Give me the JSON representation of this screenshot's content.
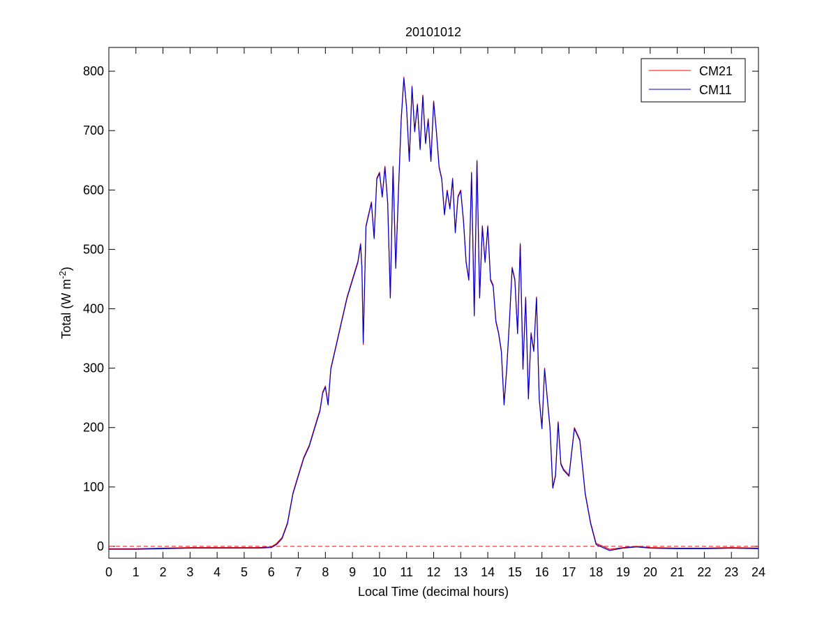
{
  "chart_data": {
    "type": "line",
    "title": "20101012",
    "xlabel": "Local Time (decimal hours)",
    "ylabel_prefix": "Total (W m",
    "ylabel_exponent": "-2",
    "ylabel_suffix": ")",
    "xlim": [
      0,
      24
    ],
    "ylim": [
      -20,
      840
    ],
    "xticks": [
      0,
      1,
      2,
      3,
      4,
      5,
      6,
      7,
      8,
      9,
      10,
      11,
      12,
      13,
      14,
      15,
      16,
      17,
      18,
      19,
      20,
      21,
      22,
      23,
      24
    ],
    "xtick_labels": [
      "0",
      "1",
      "2",
      "3",
      "4",
      "5",
      "6",
      "7",
      "8",
      "9",
      "10",
      "11",
      "12",
      "13",
      "14",
      "15",
      "16",
      "17",
      "18",
      "19",
      "20",
      "21",
      "22",
      "23",
      "24"
    ],
    "yticks": [
      0,
      100,
      200,
      300,
      400,
      500,
      600,
      700,
      800
    ],
    "ytick_labels": [
      "0",
      "100",
      "200",
      "300",
      "400",
      "500",
      "600",
      "700",
      "800"
    ],
    "grid": false,
    "legend_position": "top-right",
    "reference_line": {
      "y": 0,
      "color": "#ff0000",
      "style": "dashed"
    },
    "series": [
      {
        "name": "CM21",
        "color": "#ff0000",
        "x": [
          0,
          1,
          2,
          3,
          4,
          5,
          5.5,
          6,
          6.2,
          6.4,
          6.6,
          6.8,
          7,
          7.2,
          7.4,
          7.6,
          7.8,
          7.9,
          8,
          8.1,
          8.2,
          8.4,
          8.6,
          8.8,
          9,
          9.2,
          9.3,
          9.35,
          9.4,
          9.5,
          9.6,
          9.7,
          9.8,
          9.9,
          10,
          10.1,
          10.2,
          10.3,
          10.4,
          10.5,
          10.6,
          10.7,
          10.8,
          10.9,
          11,
          11.1,
          11.2,
          11.3,
          11.4,
          11.5,
          11.6,
          11.7,
          11.8,
          11.9,
          12,
          12.1,
          12.2,
          12.3,
          12.4,
          12.5,
          12.6,
          12.7,
          12.8,
          12.9,
          13,
          13.1,
          13.2,
          13.3,
          13.4,
          13.5,
          13.6,
          13.7,
          13.8,
          13.9,
          14,
          14.1,
          14.2,
          14.3,
          14.4,
          14.5,
          14.6,
          14.7,
          14.8,
          14.9,
          15,
          15.1,
          15.2,
          15.3,
          15.4,
          15.5,
          15.6,
          15.7,
          15.8,
          15.9,
          16,
          16.1,
          16.2,
          16.3,
          16.4,
          16.5,
          16.6,
          16.7,
          16.8,
          17,
          17.2,
          17.4,
          17.6,
          17.8,
          18,
          18.5,
          19,
          19.5,
          20,
          21,
          22,
          23,
          24
        ],
        "y": [
          -4,
          -4,
          -3,
          -2,
          -2,
          -2,
          -2,
          -1,
          5,
          15,
          40,
          90,
          120,
          150,
          170,
          200,
          230,
          260,
          270,
          240,
          300,
          340,
          380,
          420,
          450,
          480,
          510,
          470,
          340,
          540,
          560,
          580,
          520,
          620,
          630,
          590,
          640,
          580,
          420,
          640,
          470,
          600,
          720,
          790,
          740,
          650,
          775,
          700,
          745,
          670,
          760,
          680,
          720,
          650,
          750,
          700,
          640,
          620,
          560,
          600,
          570,
          620,
          530,
          590,
          600,
          550,
          480,
          450,
          630,
          390,
          650,
          420,
          540,
          480,
          540,
          450,
          440,
          380,
          360,
          330,
          240,
          300,
          380,
          470,
          450,
          360,
          510,
          300,
          420,
          250,
          360,
          330,
          420,
          250,
          200,
          300,
          250,
          200,
          100,
          120,
          210,
          140,
          130,
          120,
          200,
          180,
          90,
          40,
          5,
          -5,
          -2,
          0,
          -2,
          -3,
          -3,
          -2,
          -3
        ]
      },
      {
        "name": "CM11",
        "color": "#0000cc",
        "x": [
          0,
          1,
          2,
          3,
          4,
          5,
          5.5,
          6,
          6.2,
          6.4,
          6.6,
          6.8,
          7,
          7.2,
          7.4,
          7.6,
          7.8,
          7.9,
          8,
          8.1,
          8.2,
          8.4,
          8.6,
          8.8,
          9,
          9.2,
          9.3,
          9.35,
          9.4,
          9.5,
          9.6,
          9.7,
          9.8,
          9.9,
          10,
          10.1,
          10.2,
          10.3,
          10.4,
          10.5,
          10.6,
          10.7,
          10.8,
          10.9,
          11,
          11.1,
          11.2,
          11.3,
          11.4,
          11.5,
          11.6,
          11.7,
          11.8,
          11.9,
          12,
          12.1,
          12.2,
          12.3,
          12.4,
          12.5,
          12.6,
          12.7,
          12.8,
          12.9,
          13,
          13.1,
          13.2,
          13.3,
          13.4,
          13.5,
          13.6,
          13.7,
          13.8,
          13.9,
          14,
          14.1,
          14.2,
          14.3,
          14.4,
          14.5,
          14.6,
          14.7,
          14.8,
          14.9,
          15,
          15.1,
          15.2,
          15.3,
          15.4,
          15.5,
          15.6,
          15.7,
          15.8,
          15.9,
          16,
          16.1,
          16.2,
          16.3,
          16.4,
          16.5,
          16.6,
          16.7,
          16.8,
          17,
          17.2,
          17.4,
          17.6,
          17.8,
          18,
          18.5,
          19,
          19.5,
          20,
          21,
          22,
          23,
          24
        ],
        "y": [
          -5,
          -5,
          -4,
          -3,
          -3,
          -3,
          -3,
          -2,
          3,
          13,
          38,
          88,
          118,
          148,
          168,
          198,
          228,
          258,
          268,
          238,
          298,
          338,
          378,
          418,
          448,
          478,
          508,
          468,
          343,
          538,
          558,
          578,
          518,
          618,
          628,
          588,
          638,
          578,
          418,
          638,
          468,
          598,
          718,
          788,
          738,
          648,
          773,
          698,
          743,
          668,
          758,
          678,
          718,
          648,
          748,
          698,
          638,
          618,
          558,
          598,
          568,
          618,
          528,
          588,
          598,
          548,
          478,
          448,
          628,
          388,
          648,
          418,
          538,
          478,
          538,
          448,
          438,
          378,
          358,
          328,
          238,
          298,
          378,
          468,
          448,
          358,
          508,
          298,
          418,
          248,
          358,
          328,
          418,
          248,
          198,
          298,
          248,
          198,
          98,
          118,
          208,
          138,
          128,
          118,
          198,
          178,
          88,
          38,
          3,
          -7,
          -3,
          -1,
          -3,
          -4,
          -4,
          -3,
          -4
        ]
      }
    ]
  }
}
